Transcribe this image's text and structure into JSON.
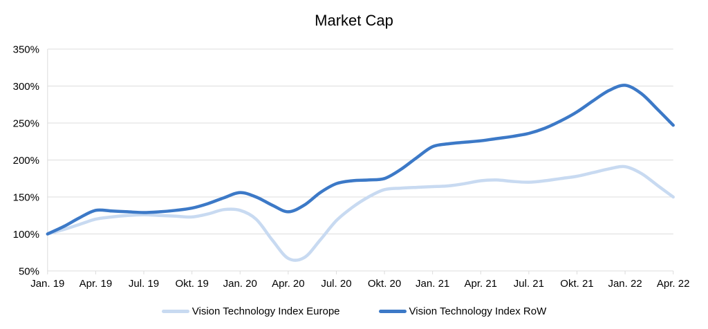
{
  "title": "Market Cap",
  "colors": {
    "background": "#ffffff",
    "grid": "#dcdcdc",
    "axis_text": "#000000",
    "europe_series": "#c8daf1",
    "row_series": "#3c79c7"
  },
  "legend": {
    "items": [
      {
        "label": "Vision Technology Index Europe",
        "color": "#c8daf1",
        "key": "europe"
      },
      {
        "label": "Vision Technology Index RoW",
        "color": "#3c79c7",
        "key": "row"
      }
    ]
  },
  "chart_data": {
    "type": "line",
    "title": "Market Cap",
    "smooth": true,
    "grid": true,
    "legend_position": "bottom",
    "ylim": [
      50,
      350
    ],
    "y_ticks": [
      350,
      300,
      250,
      200,
      150,
      100,
      50
    ],
    "y_tick_suffix": "%",
    "x_tick_labels": [
      "Jan. 19",
      "Apr. 19",
      "Jul. 19",
      "Okt. 19",
      "Jan. 20",
      "Apr. 20",
      "Jul. 20",
      "Okt. 20",
      "Jan. 21",
      "Apr. 21",
      "Jul. 21",
      "Okt. 21",
      "Jan. 22",
      "Apr. 22"
    ],
    "x": [
      "Jan. 19",
      "Feb. 19",
      "Mär. 19",
      "Apr. 19",
      "Mai 19",
      "Jun. 19",
      "Jul. 19",
      "Aug. 19",
      "Sep. 19",
      "Okt. 19",
      "Nov. 19",
      "Dez. 19",
      "Jan. 20",
      "Feb. 20",
      "Mär. 20",
      "Apr. 20",
      "Mai 20",
      "Jun. 20",
      "Jul. 20",
      "Aug. 20",
      "Sep. 20",
      "Okt. 20",
      "Nov. 20",
      "Dez. 20",
      "Jan. 21",
      "Feb. 21",
      "Mär. 21",
      "Apr. 21",
      "Mai 21",
      "Jun. 21",
      "Jul. 21",
      "Aug. 21",
      "Sep. 21",
      "Okt. 21",
      "Nov. 21",
      "Dez. 21",
      "Jan. 22",
      "Feb. 22",
      "Mär. 22",
      "Apr. 22"
    ],
    "series": [
      {
        "name": "Vision Technology Index Europe",
        "color": "#c8daf1",
        "values": [
          100,
          106,
          113,
          120,
          123,
          125,
          126,
          125,
          124,
          123,
          127,
          133,
          132,
          120,
          92,
          67,
          68,
          92,
          118,
          136,
          150,
          160,
          162,
          163,
          164,
          165,
          168,
          172,
          173,
          171,
          170,
          172,
          175,
          178,
          183,
          188,
          191,
          182,
          166,
          150
        ]
      },
      {
        "name": "Vision Technology Index RoW",
        "color": "#3c79c7",
        "values": [
          100,
          110,
          122,
          132,
          131,
          130,
          129,
          130,
          132,
          135,
          141,
          149,
          156,
          150,
          139,
          130,
          139,
          156,
          168,
          172,
          173,
          175,
          187,
          203,
          218,
          222,
          224,
          226,
          229,
          232,
          236,
          243,
          253,
          265,
          280,
          294,
          301,
          290,
          269,
          247
        ]
      }
    ]
  }
}
